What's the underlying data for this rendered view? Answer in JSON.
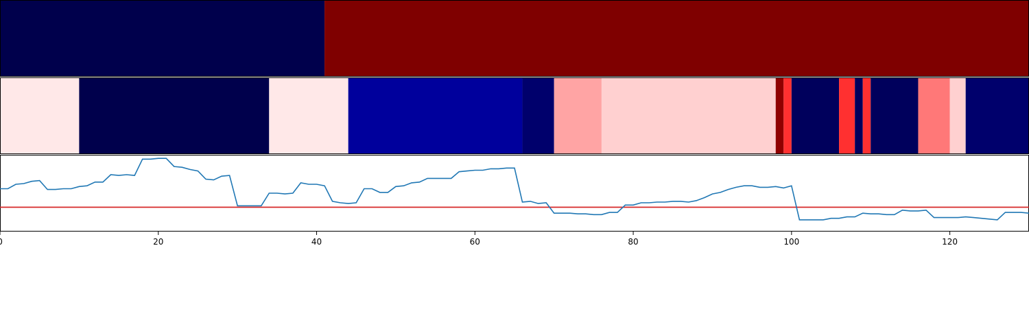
{
  "chart_data": {
    "type": "heatmap",
    "xlim": [
      0,
      130
    ],
    "x_ticks": [
      0,
      20,
      40,
      60,
      80,
      100,
      120
    ],
    "x_tick_labels": [
      "0",
      "20",
      "40",
      "60",
      "80",
      "100",
      "120"
    ],
    "colormap": "seismic",
    "top_band": {
      "segments": [
        {
          "start": 0,
          "end": 41,
          "color": "#00004c"
        },
        {
          "start": 41,
          "end": 130,
          "color": "#7f0000"
        }
      ]
    },
    "middle_band": {
      "segments": [
        {
          "start": 0,
          "end": 10,
          "color": "#ffe8e8"
        },
        {
          "start": 10,
          "end": 34,
          "color": "#00004c"
        },
        {
          "start": 34,
          "end": 44,
          "color": "#ffe8e8"
        },
        {
          "start": 44,
          "end": 66,
          "color": "#00009c"
        },
        {
          "start": 66,
          "end": 70,
          "color": "#00006c"
        },
        {
          "start": 70,
          "end": 76,
          "color": "#ffa4a4"
        },
        {
          "start": 76,
          "end": 98,
          "color": "#ffd0d0"
        },
        {
          "start": 98,
          "end": 99,
          "color": "#900000"
        },
        {
          "start": 99,
          "end": 100,
          "color": "#ff3030"
        },
        {
          "start": 100,
          "end": 106,
          "color": "#00005c"
        },
        {
          "start": 106,
          "end": 108,
          "color": "#ff3030"
        },
        {
          "start": 108,
          "end": 109,
          "color": "#00005c"
        },
        {
          "start": 109,
          "end": 110,
          "color": "#ff3030"
        },
        {
          "start": 110,
          "end": 116,
          "color": "#00005c"
        },
        {
          "start": 116,
          "end": 120,
          "color": "#ff7878"
        },
        {
          "start": 120,
          "end": 122,
          "color": "#ffd0d0"
        },
        {
          "start": 122,
          "end": 130,
          "color": "#00006c"
        }
      ]
    },
    "line_panel": {
      "ylim": [
        0,
        100
      ],
      "threshold": 31,
      "threshold_color": "#d62728",
      "line_color": "#1f77b4",
      "y": [
        56,
        56,
        62,
        63,
        66,
        67,
        55,
        55,
        56,
        56,
        59,
        60,
        65,
        65,
        75,
        74,
        75,
        74,
        96,
        96,
        97,
        97,
        86,
        85,
        82,
        80,
        69,
        68,
        73,
        74,
        33,
        33,
        33,
        33,
        50,
        50,
        49,
        50,
        64,
        62,
        62,
        60,
        39,
        37,
        36,
        37,
        56,
        56,
        51,
        51,
        59,
        60,
        64,
        65,
        70,
        70,
        70,
        70,
        79,
        80,
        81,
        81,
        83,
        83,
        84,
        84,
        38,
        39,
        36,
        37,
        23,
        23,
        23,
        22,
        22,
        21,
        21,
        24,
        24,
        34,
        34,
        37,
        37,
        38,
        38,
        39,
        39,
        38,
        40,
        44,
        49,
        51,
        55,
        58,
        60,
        60,
        58,
        58,
        59,
        57,
        60,
        14,
        14,
        14,
        14,
        16,
        16,
        18,
        18,
        23,
        22,
        22,
        21,
        21,
        27,
        26,
        26,
        27,
        17,
        17,
        17,
        17,
        18,
        17,
        16,
        15,
        14,
        24,
        24,
        24,
        23,
        23,
        24,
        23,
        21,
        21
      ]
    }
  }
}
